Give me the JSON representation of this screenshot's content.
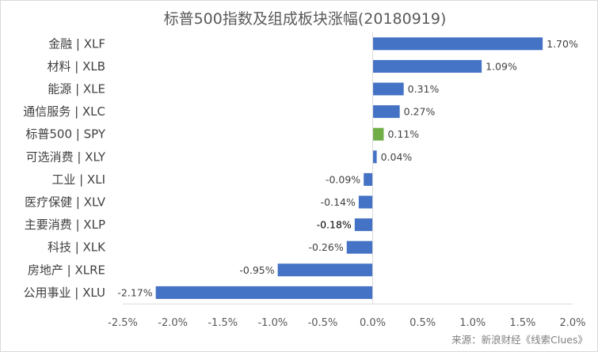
{
  "chart_data": {
    "type": "bar",
    "orientation": "horizontal",
    "title": "标普500指数及组成板块涨幅(20180919)",
    "categories": [
      "金融 | XLF",
      "材料 | XLB",
      "能源 | XLE",
      "通信服务 | XLC",
      "标普500 | SPY",
      "可选消费 | XLY",
      "工业 | XLI",
      "医疗保健 | XLV",
      "主要消费 | XLP",
      "科技 | XLK",
      "房地产 | XLRE",
      "公用事业 | XLU"
    ],
    "values": [
      1.7,
      1.09,
      0.31,
      0.27,
      0.11,
      0.04,
      -0.09,
      -0.14,
      -0.18,
      -0.26,
      -0.95,
      -2.17
    ],
    "data_labels": [
      "1.70%",
      "1.09%",
      "0.31%",
      "0.27%",
      "0.11%",
      "0.04%",
      "-0.09%",
      "-0.14%",
      "-0.18%",
      "-0.26%",
      "-0.95%",
      "-2.17%"
    ],
    "bar_colors": [
      "#4472c4",
      "#4472c4",
      "#4472c4",
      "#4472c4",
      "#70ad47",
      "#4472c4",
      "#4472c4",
      "#4472c4",
      "#4472c4",
      "#4472c4",
      "#4472c4",
      "#4472c4"
    ],
    "xlim": [
      -2.5,
      2.0
    ],
    "x_ticks": [
      -2.5,
      -2.0,
      -1.5,
      -1.0,
      -0.5,
      0.0,
      0.5,
      1.0,
      1.5,
      2.0
    ],
    "x_tick_labels": [
      "-2.5%",
      "-2.0%",
      "-1.5%",
      "-1.0%",
      "-0.5%",
      "0.0%",
      "0.5%",
      "1.0%",
      "1.5%",
      "2.0%"
    ],
    "xlabel": "",
    "ylabel": "",
    "grid": false,
    "legend": "none",
    "source": "来源：新浪财经《线索Clues》"
  },
  "colors": {
    "primary": "#4472c4",
    "highlight": "#70ad47",
    "axis": "#d9d9d9",
    "text": "#404040"
  }
}
